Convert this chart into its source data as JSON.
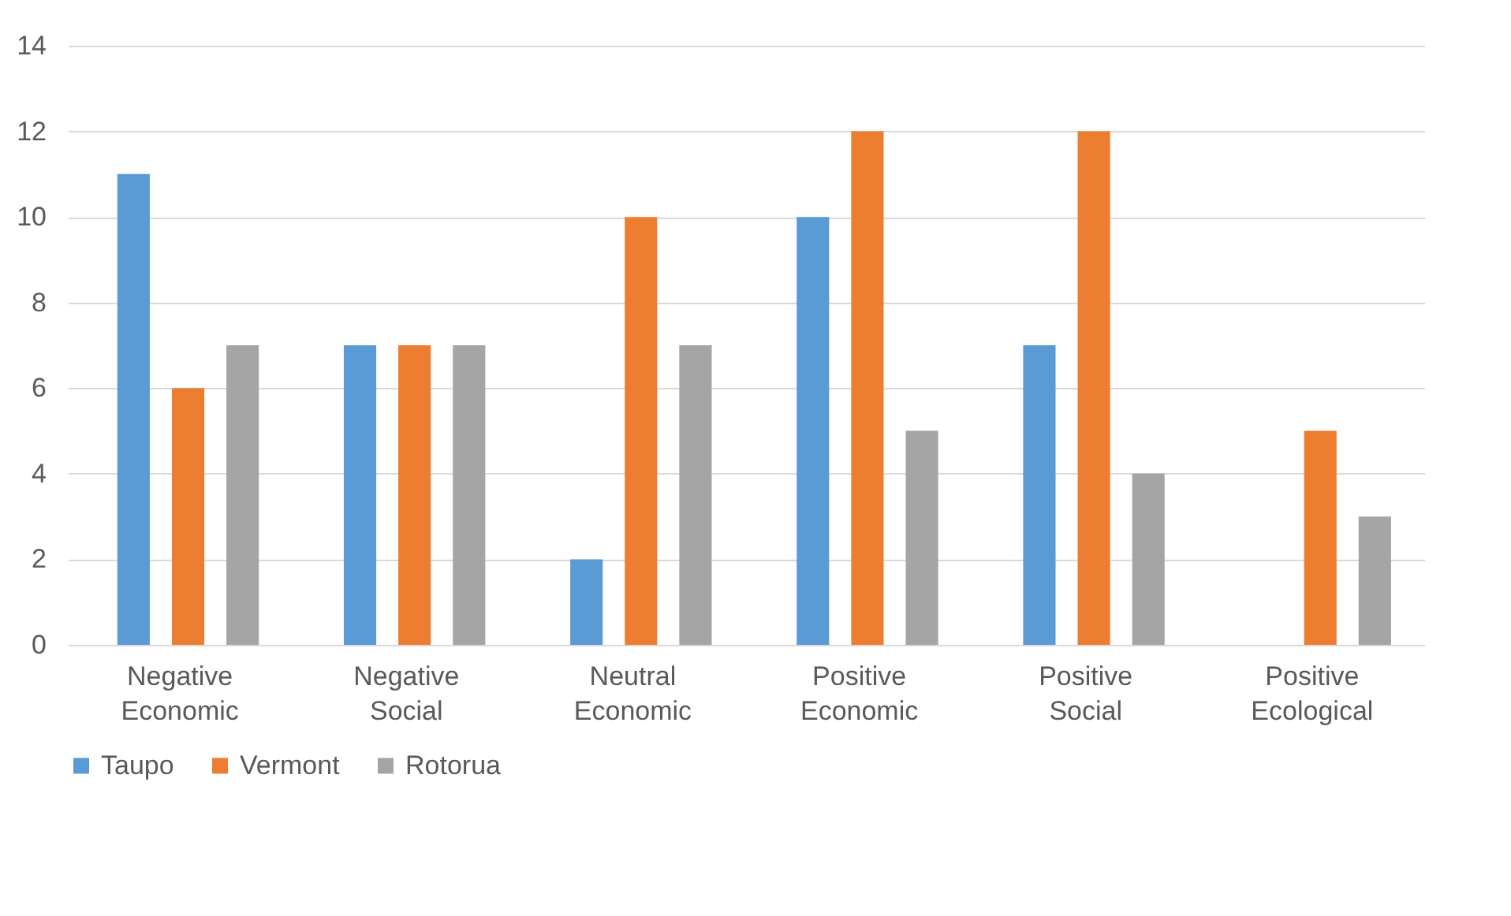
{
  "chart_data": {
    "type": "bar",
    "categories": [
      "Negative Economic",
      "Negative Social",
      "Neutral Economic",
      "Positive Economic",
      "Positive Social",
      "Positive Ecological"
    ],
    "series": [
      {
        "name": "Taupo",
        "color": "#5b9bd5",
        "values": [
          11,
          7,
          2,
          10,
          7,
          0
        ]
      },
      {
        "name": "Vermont",
        "color": "#ed7d31",
        "values": [
          6,
          7,
          10,
          12,
          12,
          5
        ]
      },
      {
        "name": "Rotorua",
        "color": "#a5a5a5",
        "values": [
          7,
          7,
          7,
          5,
          4,
          3
        ]
      }
    ],
    "ylim": [
      0,
      14
    ],
    "yticks": [
      0,
      2,
      4,
      6,
      8,
      10,
      12,
      14
    ],
    "grid": "y",
    "legend": "bottom"
  }
}
